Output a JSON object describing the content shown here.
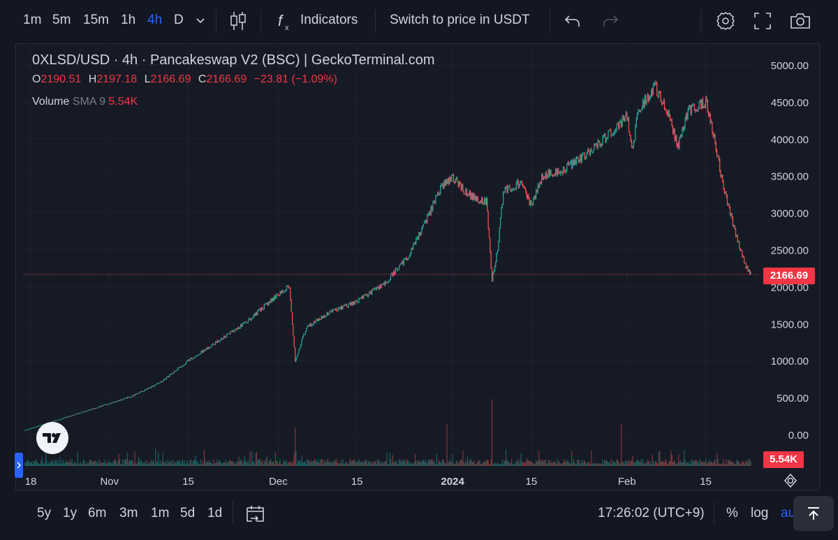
{
  "toolbar": {
    "intervals": [
      "1m",
      "5m",
      "15m",
      "1h",
      "4h",
      "D"
    ],
    "active_interval": "4h",
    "indicators_label": "Indicators",
    "switch_label": "Switch to price in USDT"
  },
  "legend": {
    "title": "0XLSD/USD · 4h · Pancakeswap V2 (BSC) | GeckoTerminal.com",
    "o_label": "O",
    "o": "2190.51",
    "h_label": "H",
    "h": "2197.18",
    "l_label": "L",
    "l": "2166.69",
    "c_label": "C",
    "c": "2166.69",
    "change": "−23.81 (−1.09%)",
    "volume_label": "Volume",
    "sma_label": "SMA 9",
    "volume_value": "5.54K"
  },
  "price_badge": "2166.69",
  "volume_badge": "5.54K",
  "bottombar": {
    "ranges": [
      "5y",
      "1y",
      "6m",
      "3m",
      "1m",
      "5d",
      "1d"
    ],
    "time": "17:26:02 (UTC+9)",
    "percent": "%",
    "log": "log",
    "auto": "auto"
  },
  "colors": {
    "up": "#26a69a",
    "down": "#ef5350",
    "accent": "#2962ff",
    "badge": "#f23645"
  },
  "chart_data": {
    "type": "line",
    "title": "0XLSD/USD · 4h · Pancakeswap V2 (BSC) | GeckoTerminal.com",
    "y_ticks": [
      "5000.00",
      "4500.00",
      "4000.00",
      "3500.00",
      "3000.00",
      "2500.00",
      "2000.00",
      "1500.00",
      "1000.00",
      "500.00",
      "0.00"
    ],
    "ylim": [
      0,
      5000
    ],
    "x_ticks": [
      {
        "label": "18",
        "date": "2023-10-18"
      },
      {
        "label": "Nov",
        "date": "2023-11-01"
      },
      {
        "label": "15",
        "date": "2023-11-15"
      },
      {
        "label": "Dec",
        "date": "2023-12-01"
      },
      {
        "label": "15",
        "date": "2023-12-15"
      },
      {
        "label": "2024",
        "date": "2024-01-01",
        "bold": true
      },
      {
        "label": "15",
        "date": "2024-01-15"
      },
      {
        "label": "Feb",
        "date": "2024-02-01"
      },
      {
        "label": "15",
        "date": "2024-02-15"
      }
    ],
    "x_range": [
      "2023-10-17",
      "2024-02-23"
    ],
    "series": [
      {
        "values": [
          {
            "x": "2023-10-17",
            "y": 60
          },
          {
            "x": "2023-10-22",
            "y": 180
          },
          {
            "x": "2023-10-27",
            "y": 300
          },
          {
            "x": "2023-11-01",
            "y": 420
          },
          {
            "x": "2023-11-05",
            "y": 520
          },
          {
            "x": "2023-11-10",
            "y": 700
          },
          {
            "x": "2023-11-15",
            "y": 1000
          },
          {
            "x": "2023-11-20",
            "y": 1250
          },
          {
            "x": "2023-11-25",
            "y": 1500
          },
          {
            "x": "2023-12-01",
            "y": 1900
          },
          {
            "x": "2023-12-03",
            "y": 2010
          },
          {
            "x": "2023-12-04",
            "y": 1000
          },
          {
            "x": "2023-12-06",
            "y": 1450
          },
          {
            "x": "2023-12-10",
            "y": 1650
          },
          {
            "x": "2023-12-15",
            "y": 1800
          },
          {
            "x": "2023-12-20",
            "y": 2050
          },
          {
            "x": "2023-12-24",
            "y": 2400
          },
          {
            "x": "2023-12-27",
            "y": 2850
          },
          {
            "x": "2023-12-30",
            "y": 3350
          },
          {
            "x": "2024-01-01",
            "y": 3480
          },
          {
            "x": "2024-01-03",
            "y": 3300
          },
          {
            "x": "2024-01-05",
            "y": 3200
          },
          {
            "x": "2024-01-07",
            "y": 3150
          },
          {
            "x": "2024-01-08",
            "y": 2100
          },
          {
            "x": "2024-01-09",
            "y": 2500
          },
          {
            "x": "2024-01-10",
            "y": 3300
          },
          {
            "x": "2024-01-13",
            "y": 3400
          },
          {
            "x": "2024-01-15",
            "y": 3100
          },
          {
            "x": "2024-01-17",
            "y": 3500
          },
          {
            "x": "2024-01-21",
            "y": 3600
          },
          {
            "x": "2024-01-25",
            "y": 3800
          },
          {
            "x": "2024-01-30",
            "y": 4150
          },
          {
            "x": "2024-02-01",
            "y": 4300
          },
          {
            "x": "2024-02-02",
            "y": 3850
          },
          {
            "x": "2024-02-03",
            "y": 4400
          },
          {
            "x": "2024-02-06",
            "y": 4700
          },
          {
            "x": "2024-02-08",
            "y": 4400
          },
          {
            "x": "2024-02-10",
            "y": 3900
          },
          {
            "x": "2024-02-12",
            "y": 4400
          },
          {
            "x": "2024-02-15",
            "y": 4500
          },
          {
            "x": "2024-02-16",
            "y": 4200
          },
          {
            "x": "2024-02-18",
            "y": 3400
          },
          {
            "x": "2024-02-20",
            "y": 2800
          },
          {
            "x": "2024-02-22",
            "y": 2300
          },
          {
            "x": "2024-02-23",
            "y": 2166.69
          }
        ]
      }
    ],
    "volume": {
      "type": "bar",
      "last_value": "5.54K",
      "spikes": [
        {
          "x": "2023-12-04",
          "level": 0.55
        },
        {
          "x": "2024-01-08",
          "level": 0.95
        },
        {
          "x": "2023-12-31",
          "level": 0.6
        },
        {
          "x": "2024-01-31",
          "level": 0.6
        }
      ]
    }
  }
}
